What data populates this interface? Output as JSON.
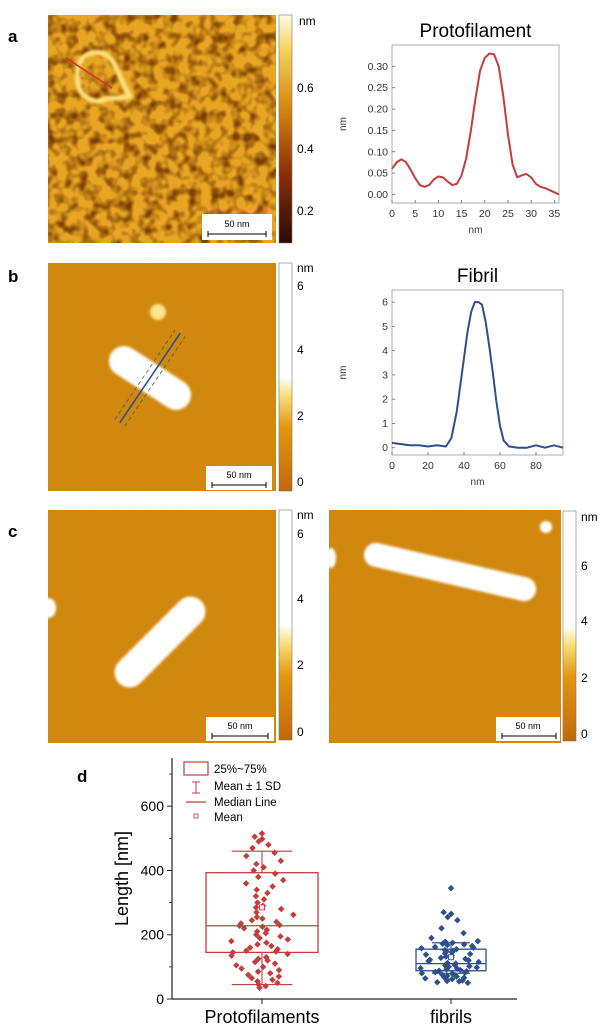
{
  "panels": {
    "a": {
      "letter": "a",
      "colorbar": {
        "unit": "nm",
        "ticks": [
          0.2,
          0.4,
          0.6
        ]
      },
      "scale_bar": "50 nm"
    },
    "b": {
      "letter": "b",
      "colorbar": {
        "unit": "nm",
        "ticks": [
          0,
          2,
          4,
          6
        ]
      },
      "scale_bar": "50 nm"
    },
    "c": {
      "letter": "c",
      "colorbar_left": {
        "unit": "nm",
        "ticks": [
          0,
          2,
          4,
          6
        ]
      },
      "colorbar_right": {
        "unit": "nm",
        "ticks": [
          0,
          2,
          4,
          6
        ]
      },
      "scale_bar_left": "50 nm",
      "scale_bar_right": "50 nm"
    },
    "d": {
      "letter": "d"
    }
  },
  "colors": {
    "protofilament_red": "#c43c3c",
    "fibril_blue": "#2e4f8e"
  },
  "chart_data": [
    {
      "id": "profile-protofilament",
      "type": "line",
      "title": "Protofilament",
      "xlabel": "nm",
      "ylabel": "nm",
      "xlim": [
        0,
        36
      ],
      "ylim": [
        -0.02,
        0.35
      ],
      "xticks": [
        0,
        5,
        10,
        15,
        20,
        25,
        30,
        35
      ],
      "yticks": [
        0.0,
        0.05,
        0.1,
        0.15,
        0.2,
        0.25,
        0.3
      ],
      "series": [
        {
          "x": [
            0,
            1,
            2,
            3,
            4,
            5,
            6,
            7,
            8,
            9,
            10,
            11,
            12,
            13,
            14,
            15,
            16,
            17,
            18,
            19,
            20,
            21,
            22,
            23,
            24,
            25,
            26,
            27,
            28,
            29,
            30,
            31,
            32,
            33,
            34,
            35,
            36
          ],
          "y": [
            0.06,
            0.075,
            0.082,
            0.076,
            0.058,
            0.038,
            0.022,
            0.018,
            0.022,
            0.035,
            0.042,
            0.04,
            0.03,
            0.022,
            0.025,
            0.045,
            0.085,
            0.15,
            0.225,
            0.29,
            0.32,
            0.33,
            0.328,
            0.3,
            0.23,
            0.14,
            0.07,
            0.04,
            0.045,
            0.048,
            0.04,
            0.025,
            0.018,
            0.015,
            0.01,
            0.005,
            0.0
          ]
        }
      ]
    },
    {
      "id": "profile-fibril",
      "type": "line",
      "title": "Fibril",
      "xlabel": "nm",
      "ylabel": "nm",
      "xlim": [
        0,
        95
      ],
      "ylim": [
        -0.3,
        6.5
      ],
      "xticks": [
        0,
        20,
        40,
        60,
        80
      ],
      "yticks": [
        0,
        1,
        2,
        3,
        4,
        5,
        6
      ],
      "series": [
        {
          "x": [
            0,
            5,
            10,
            15,
            20,
            25,
            30,
            33,
            36,
            38,
            40,
            42,
            44,
            46,
            48,
            50,
            52,
            54,
            56,
            58,
            60,
            62,
            65,
            70,
            75,
            80,
            85,
            90,
            95
          ],
          "y": [
            0.2,
            0.15,
            0.1,
            0.1,
            0.05,
            0.1,
            0.05,
            0.4,
            1.5,
            2.6,
            3.7,
            4.8,
            5.6,
            6.0,
            6.0,
            5.9,
            5.2,
            4.2,
            3.1,
            1.9,
            0.9,
            0.3,
            0.05,
            0.0,
            0.0,
            0.1,
            0.0,
            0.1,
            0.0
          ]
        }
      ]
    },
    {
      "id": "length-distribution",
      "type": "box",
      "ylabel": "Length [nm]",
      "ylim": [
        0,
        750
      ],
      "yticks": [
        0,
        200,
        400,
        600
      ],
      "categories": [
        "Protofilaments",
        "fibrils"
      ],
      "legend": {
        "position": "top-left",
        "entries": [
          "25%~75%",
          "Mean ± 1 SD",
          "Median Line",
          "Mean"
        ]
      },
      "boxes": [
        {
          "q1": 145,
          "median": 228,
          "q3": 393,
          "mean": 285,
          "sd_low": 45,
          "sd_high": 460,
          "points": [
            515,
            505,
            498,
            490,
            480,
            470,
            455,
            445,
            430,
            420,
            410,
            400,
            390,
            380,
            370,
            360,
            350,
            340,
            330,
            320,
            310,
            300,
            290,
            285,
            280,
            270,
            262,
            255,
            250,
            245,
            240,
            235,
            230,
            228,
            225,
            220,
            215,
            210,
            205,
            200,
            195,
            190,
            185,
            180,
            175,
            170,
            165,
            160,
            155,
            150,
            148,
            145,
            140,
            135,
            130,
            125,
            120,
            115,
            110,
            105,
            100,
            95,
            90,
            85,
            80,
            75,
            70,
            65,
            60,
            55,
            50,
            45,
            40,
            35
          ]
        },
        {
          "q1": 88,
          "median": 110,
          "q3": 155,
          "mean": 130,
          "sd_low": 80,
          "sd_high": 175,
          "points": [
            345,
            270,
            265,
            255,
            245,
            220,
            205,
            190,
            180,
            178,
            175,
            172,
            170,
            168,
            165,
            162,
            160,
            158,
            155,
            152,
            150,
            148,
            145,
            142,
            140,
            138,
            135,
            132,
            130,
            128,
            125,
            122,
            120,
            118,
            115,
            112,
            110,
            108,
            106,
            104,
            102,
            100,
            98,
            96,
            94,
            92,
            90,
            88,
            86,
            84,
            82,
            80,
            78,
            76,
            74,
            72,
            70,
            68,
            66,
            64,
            62,
            60,
            58,
            56,
            55,
            52,
            50
          ]
        }
      ]
    }
  ]
}
